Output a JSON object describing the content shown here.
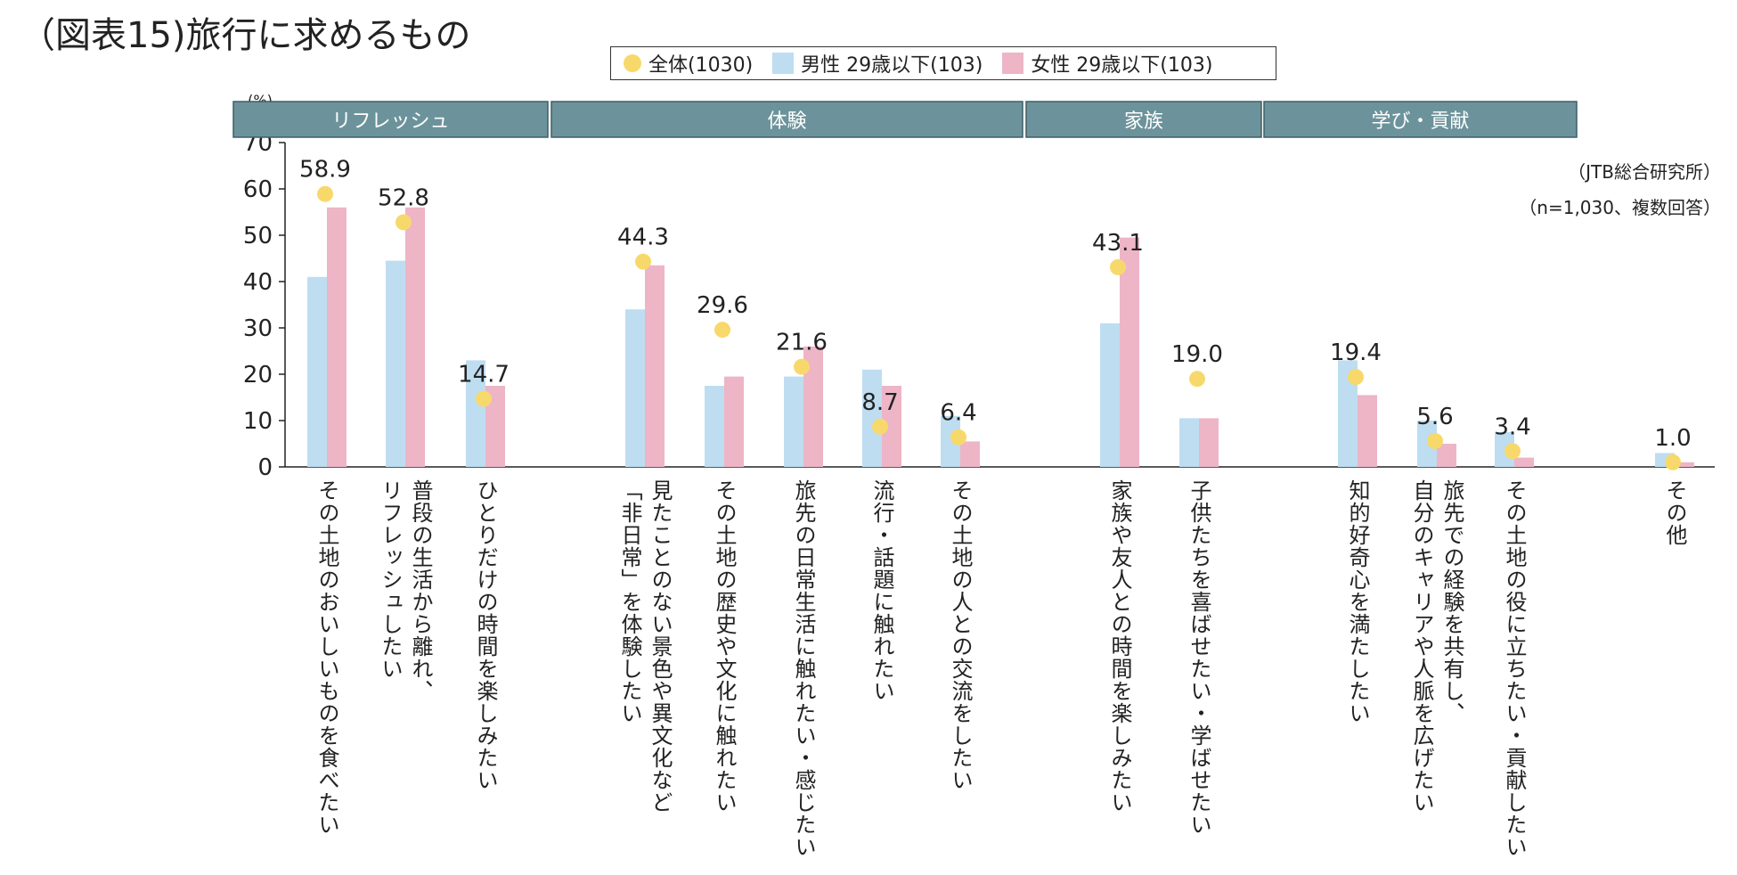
{
  "title": "（図表15)旅行に求めるもの",
  "source": "（JTB総合研究所）",
  "sample_note": "（n=1,030、複数回答）",
  "colors": {
    "all": "#F7D96B",
    "male": "#BEDDF1",
    "female": "#EDB5C6",
    "group_header": "#6C939B",
    "axis": "#222222"
  },
  "legend": [
    {
      "label": "全体(1030)",
      "shape": "dot",
      "color": "#F7D96B"
    },
    {
      "label": "男性 29歳以下(103)",
      "shape": "box",
      "color": "#BEDDF1"
    },
    {
      "label": "女性 29歳以下(103)",
      "shape": "box",
      "color": "#EDB5C6"
    }
  ],
  "chart_data": {
    "type": "bar",
    "title": "（図表15)旅行に求めるもの",
    "ylabel": "(%)",
    "ylim": [
      0,
      70
    ],
    "yticks": [
      0,
      10,
      20,
      30,
      40,
      50,
      60,
      70
    ],
    "grid": false,
    "legend_position": "top-center",
    "groups": [
      {
        "label": "リフレッシュ",
        "from": 0,
        "to": 2
      },
      {
        "label": "体験",
        "from": 3,
        "to": 7
      },
      {
        "label": "家族",
        "from": 8,
        "to": 9
      },
      {
        "label": "学び・貢献",
        "from": 10,
        "to": 12
      }
    ],
    "categories": [
      "その土地のおいしいものを食べたい",
      "普段の生活から離れ、リフレッシュしたい",
      "ひとりだけの時間を楽しみたい",
      "見たことのない景色や異文化など「非日常」を体験したい",
      "その土地の歴史や文化に触れたい",
      "旅先の日常生活に触れたい・感じたい",
      "流行・話題に触れたい",
      "その土地の人との交流をしたい",
      "家族や友人との時間を楽しみたい",
      "子供たちを喜ばせたい・学ばせたい",
      "知的好奇心を満たしたい",
      "旅先での経験を共有し、自分のキャリアや人脈を広げたい",
      "その土地の役に立ちたい・貢献したい",
      "その他"
    ],
    "series": [
      {
        "name": "全体(1030)",
        "kind": "dot",
        "values": [
          58.9,
          52.8,
          14.7,
          44.3,
          29.6,
          21.6,
          8.7,
          6.4,
          43.1,
          19.0,
          19.4,
          5.6,
          3.4,
          1.0
        ]
      },
      {
        "name": "男性 29歳以下(103)",
        "kind": "bar",
        "values": [
          41,
          44.5,
          23,
          34,
          17.5,
          19.5,
          21,
          11,
          31,
          10.5,
          23,
          10,
          7.5,
          3
        ]
      },
      {
        "name": "女性 29歳以下(103)",
        "kind": "bar",
        "values": [
          56,
          56,
          17.5,
          43.5,
          19.5,
          26,
          17.5,
          5.5,
          49.5,
          10.5,
          15.5,
          5,
          2,
          1
        ]
      }
    ],
    "data_labels": [
      "58.9",
      "52.8",
      "14.7",
      "44.3",
      "29.6",
      "21.6",
      "8.7",
      "6.4",
      "43.1",
      "19.0",
      "19.4",
      "5.6",
      "3.4",
      "1.0"
    ]
  }
}
